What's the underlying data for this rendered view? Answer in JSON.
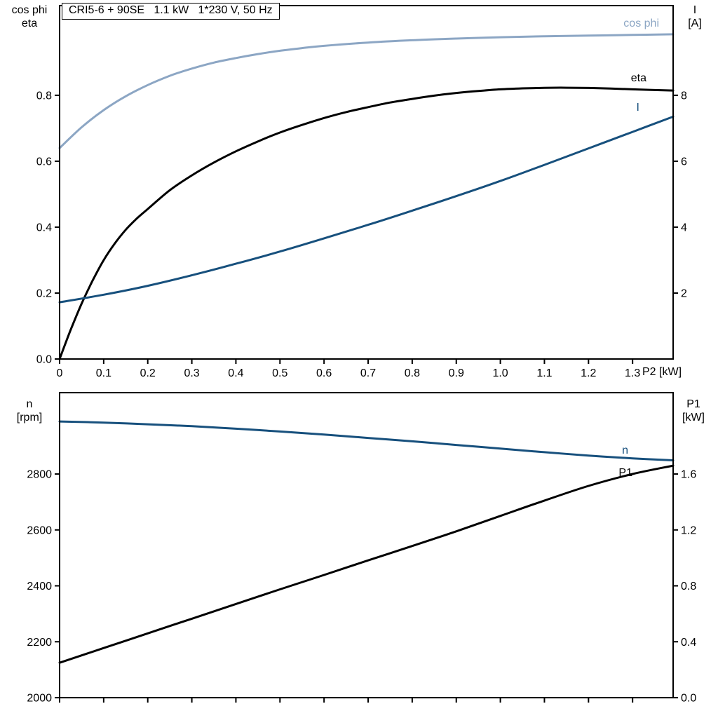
{
  "colors": {
    "frame": "#000000",
    "text": "#000000",
    "cos_phi": "#8ca6c4",
    "eta": "#000000",
    "current": "#17507d",
    "speed": "#17507d",
    "p1": "#000000",
    "background": "#ffffff"
  },
  "title_box": {
    "text": "CRI5-6 + 90SE   1.1 kW   1*230 V, 50 Hz"
  },
  "top_chart": {
    "left_axis_label_line1": "cos phi",
    "left_axis_label_line2": "eta",
    "right_axis_label_line1": "I",
    "right_axis_label_line2": "[A]",
    "x_axis_label": "P2 [kW]",
    "curve_labels": {
      "cos_phi": "cos phi",
      "eta": "eta",
      "current": "I"
    }
  },
  "bottom_chart": {
    "left_axis_label_line1": "n",
    "left_axis_label_line2": "[rpm]",
    "right_axis_label_line1": "P1",
    "right_axis_label_line2": "[kW]",
    "curve_labels": {
      "speed": "n",
      "p1": "P1"
    }
  },
  "chart_data": [
    {
      "id": "top",
      "type": "line",
      "title": "CRI5-6 + 90SE 1.1 kW 1*230 V, 50 Hz",
      "x_axis": {
        "label": "P2 [kW]",
        "range": [
          0,
          1.392
        ],
        "tick_values": [
          0,
          0.1,
          0.2,
          0.3,
          0.4,
          0.5,
          0.6,
          0.7,
          0.8,
          0.9,
          1.0,
          1.1,
          1.2,
          1.3
        ],
        "tick_labels": [
          "0",
          "0.1",
          "0.2",
          "0.3",
          "0.4",
          "0.5",
          "0.6",
          "0.7",
          "0.8",
          "0.9",
          "1.0",
          "1.1",
          "1.2",
          "1.3"
        ],
        "show_tick_labels": true
      },
      "left_axis": {
        "label": "cos phi / eta",
        "range": [
          0,
          1.072
        ],
        "tick_values": [
          0,
          0.2,
          0.4,
          0.6,
          0.8
        ],
        "tick_labels": [
          "0.0",
          "0.2",
          "0.4",
          "0.6",
          "0.8"
        ]
      },
      "right_axis": {
        "label": "I [A]",
        "range": [
          0,
          10.72
        ],
        "tick_values": [
          2,
          4,
          6,
          8
        ],
        "tick_labels": [
          "2",
          "4",
          "6",
          "8"
        ]
      },
      "series": [
        {
          "name": "cos phi",
          "slug": "cos-phi",
          "axis": "left",
          "color_key": "cos_phi",
          "x": [
            0,
            0.05,
            0.1,
            0.15,
            0.2,
            0.25,
            0.3,
            0.35,
            0.4,
            0.45,
            0.5,
            0.55,
            0.6,
            0.7,
            0.8,
            0.9,
            1.0,
            1.1,
            1.2,
            1.3,
            1.392
          ],
          "y": [
            0.64,
            0.703,
            0.755,
            0.797,
            0.831,
            0.859,
            0.881,
            0.899,
            0.913,
            0.925,
            0.935,
            0.943,
            0.95,
            0.96,
            0.967,
            0.972,
            0.976,
            0.979,
            0.981,
            0.983,
            0.985
          ]
        },
        {
          "name": "eta",
          "slug": "eta",
          "axis": "left",
          "color_key": "eta",
          "x": [
            0,
            0.025,
            0.05,
            0.075,
            0.1,
            0.125,
            0.15,
            0.175,
            0.2,
            0.25,
            0.3,
            0.35,
            0.4,
            0.45,
            0.5,
            0.55,
            0.6,
            0.65,
            0.7,
            0.75,
            0.8,
            0.85,
            0.9,
            0.95,
            1.0,
            1.05,
            1.1,
            1.15,
            1.2,
            1.25,
            1.3,
            1.392
          ],
          "y": [
            0,
            0.088,
            0.168,
            0.238,
            0.3,
            0.35,
            0.392,
            0.426,
            0.455,
            0.512,
            0.557,
            0.596,
            0.63,
            0.66,
            0.687,
            0.71,
            0.731,
            0.749,
            0.764,
            0.778,
            0.789,
            0.799,
            0.807,
            0.813,
            0.818,
            0.821,
            0.8225,
            0.823,
            0.8222,
            0.8205,
            0.818,
            0.8145
          ]
        },
        {
          "name": "I",
          "slug": "current",
          "axis": "right",
          "color_key": "current",
          "x": [
            0,
            0.1,
            0.2,
            0.3,
            0.4,
            0.5,
            0.6,
            0.7,
            0.8,
            0.9,
            1.0,
            1.1,
            1.2,
            1.3,
            1.392
          ],
          "y": [
            1.72,
            1.95,
            2.22,
            2.54,
            2.89,
            3.26,
            3.66,
            4.07,
            4.5,
            4.94,
            5.4,
            5.89,
            6.39,
            6.89,
            7.35
          ]
        }
      ]
    },
    {
      "id": "bottom",
      "type": "line",
      "title": "Speed and input power",
      "x_axis": {
        "label": "",
        "range": [
          0,
          1.392
        ],
        "tick_values": [
          0,
          0.1,
          0.2,
          0.3,
          0.4,
          0.5,
          0.6,
          0.7,
          0.8,
          0.9,
          1.0,
          1.1,
          1.2,
          1.3
        ],
        "tick_labels": [],
        "show_tick_labels": false
      },
      "left_axis": {
        "label": "n [rpm]",
        "range": [
          2000,
          3091
        ],
        "tick_values": [
          2000,
          2200,
          2400,
          2600,
          2800
        ],
        "tick_labels": [
          "2000",
          "2200",
          "2400",
          "2600",
          "2800"
        ]
      },
      "right_axis": {
        "label": "P1 [kW]",
        "range": [
          0,
          2.182
        ],
        "tick_values": [
          0,
          0.4,
          0.8,
          1.2,
          1.6
        ],
        "tick_labels": [
          "0.0",
          "0.4",
          "0.8",
          "1.2",
          "1.6"
        ]
      },
      "series": [
        {
          "name": "n",
          "slug": "speed",
          "axis": "left",
          "color_key": "speed",
          "x": [
            0,
            0.1,
            0.2,
            0.3,
            0.4,
            0.5,
            0.6,
            0.7,
            0.8,
            0.9,
            1.0,
            1.1,
            1.2,
            1.3,
            1.392
          ],
          "y": [
            2988,
            2984,
            2978,
            2971,
            2962,
            2952,
            2941,
            2929,
            2917,
            2904,
            2891,
            2878,
            2866,
            2856,
            2849
          ]
        },
        {
          "name": "P1",
          "slug": "p1",
          "axis": "right",
          "color_key": "p1",
          "x": [
            0,
            0.1,
            0.2,
            0.3,
            0.4,
            0.5,
            0.6,
            0.7,
            0.8,
            0.9,
            1.0,
            1.1,
            1.2,
            1.3,
            1.392
          ],
          "y": [
            0.25,
            0.355,
            0.46,
            0.565,
            0.67,
            0.775,
            0.878,
            0.982,
            1.085,
            1.19,
            1.3,
            1.41,
            1.515,
            1.6,
            1.66
          ]
        }
      ]
    }
  ]
}
